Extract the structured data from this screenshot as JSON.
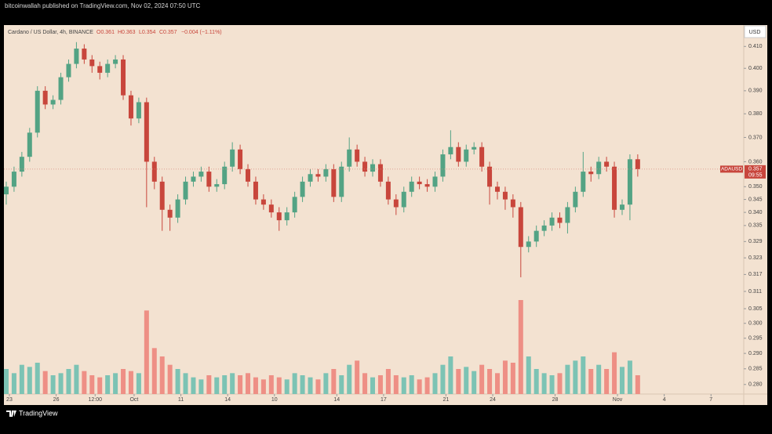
{
  "chart_data": {
    "type": "candlestick",
    "published": "bitcoinwallah published on TradingView.com, Nov 02, 2024 07:50 UTC",
    "title": "Cardano / US Dollar, 4h, BINANCE",
    "header_values": [
      "O0.361",
      "H0.363",
      "L0.354",
      "C0.357",
      "−0.004 (−1.11%)"
    ],
    "currency": "USD",
    "symbol_tag": "ADAUSD",
    "last_price_label": "0.357",
    "countdown": "09:55",
    "brand": "TradingView",
    "log_scale": true,
    "grid": false,
    "up_color": "#53a384",
    "down_color": "#c8463c",
    "volume_up_color": "#7cc3b4",
    "volume_down_color": "#ee8f85",
    "x": [
      -0.2,
      0.3,
      0.8,
      1.3,
      1.8,
      2.3,
      2.8,
      3.3,
      3.8,
      4.3,
      4.8,
      5.3,
      5.8,
      6.3,
      6.8,
      7.3,
      7.8,
      8.3,
      8.8,
      9.3,
      9.8,
      10.3,
      10.8,
      11.3,
      11.8,
      12.3,
      12.8,
      13.3,
      13.8,
      14.3,
      14.8,
      15.3,
      15.8,
      16.3,
      16.8,
      17.3,
      17.8,
      18.3,
      18.8,
      19.3,
      19.8,
      20.3,
      20.8,
      21.3,
      21.8,
      22.3,
      22.8,
      23.3,
      23.8,
      24.3,
      24.8,
      25.3,
      25.8,
      26.3,
      26.8,
      27.3,
      27.8,
      28.3,
      28.8,
      29.3,
      29.8,
      30.3,
      30.8,
      31.3,
      31.8,
      32.3,
      32.8,
      33.3,
      33.8,
      34.3,
      34.8,
      35.3,
      35.8,
      36.3,
      36.8,
      37.3,
      37.8,
      38.3,
      38.8,
      39.3,
      39.8,
      40.3
    ],
    "open": [
      0.347,
      0.35,
      0.356,
      0.362,
      0.372,
      0.39,
      0.384,
      0.386,
      0.396,
      0.402,
      0.409,
      0.404,
      0.401,
      0.398,
      0.402,
      0.404,
      0.388,
      0.378,
      0.385,
      0.36,
      0.352,
      0.341,
      0.338,
      0.345,
      0.352,
      0.354,
      0.356,
      0.35,
      0.351,
      0.358,
      0.365,
      0.357,
      0.352,
      0.345,
      0.343,
      0.34,
      0.337,
      0.34,
      0.346,
      0.352,
      0.355,
      0.354,
      0.357,
      0.346,
      0.358,
      0.365,
      0.36,
      0.356,
      0.359,
      0.352,
      0.345,
      0.342,
      0.348,
      0.352,
      0.351,
      0.35,
      0.354,
      0.363,
      0.366,
      0.36,
      0.365,
      0.366,
      0.358,
      0.35,
      0.348,
      0.345,
      0.342,
      0.327,
      0.329,
      0.333,
      0.335,
      0.338,
      0.336,
      0.342,
      0.348,
      0.356,
      0.355,
      0.36,
      0.358,
      0.341,
      0.343,
      0.361
    ],
    "high": [
      0.352,
      0.358,
      0.364,
      0.374,
      0.392,
      0.392,
      0.388,
      0.398,
      0.404,
      0.412,
      0.411,
      0.406,
      0.403,
      0.404,
      0.406,
      0.406,
      0.39,
      0.387,
      0.387,
      0.362,
      0.354,
      0.343,
      0.347,
      0.354,
      0.356,
      0.358,
      0.358,
      0.353,
      0.36,
      0.368,
      0.367,
      0.359,
      0.354,
      0.347,
      0.345,
      0.342,
      0.342,
      0.348,
      0.354,
      0.357,
      0.357,
      0.359,
      0.359,
      0.36,
      0.37,
      0.367,
      0.362,
      0.361,
      0.361,
      0.354,
      0.347,
      0.35,
      0.354,
      0.354,
      0.353,
      0.356,
      0.365,
      0.373,
      0.368,
      0.367,
      0.368,
      0.368,
      0.36,
      0.352,
      0.35,
      0.347,
      0.344,
      0.331,
      0.335,
      0.337,
      0.34,
      0.34,
      0.344,
      0.35,
      0.364,
      0.358,
      0.362,
      0.362,
      0.36,
      0.345,
      0.363,
      0.363
    ],
    "low": [
      0.343,
      0.348,
      0.354,
      0.36,
      0.37,
      0.382,
      0.382,
      0.384,
      0.394,
      0.4,
      0.402,
      0.398,
      0.395,
      0.396,
      0.4,
      0.386,
      0.375,
      0.376,
      0.342,
      0.349,
      0.333,
      0.333,
      0.336,
      0.343,
      0.35,
      0.352,
      0.348,
      0.348,
      0.349,
      0.356,
      0.355,
      0.35,
      0.343,
      0.341,
      0.338,
      0.333,
      0.335,
      0.338,
      0.344,
      0.35,
      0.352,
      0.352,
      0.344,
      0.344,
      0.356,
      0.358,
      0.354,
      0.354,
      0.35,
      0.343,
      0.339,
      0.34,
      0.346,
      0.349,
      0.348,
      0.348,
      0.352,
      0.361,
      0.358,
      0.358,
      0.363,
      0.356,
      0.343,
      0.345,
      0.341,
      0.338,
      0.316,
      0.325,
      0.327,
      0.331,
      0.333,
      0.334,
      0.332,
      0.34,
      0.346,
      0.352,
      0.353,
      0.356,
      0.338,
      0.339,
      0.337,
      0.354
    ],
    "close": [
      0.35,
      0.356,
      0.362,
      0.372,
      0.39,
      0.384,
      0.386,
      0.396,
      0.402,
      0.409,
      0.404,
      0.401,
      0.398,
      0.402,
      0.404,
      0.388,
      0.378,
      0.385,
      0.36,
      0.352,
      0.341,
      0.338,
      0.345,
      0.352,
      0.354,
      0.356,
      0.35,
      0.351,
      0.358,
      0.365,
      0.357,
      0.352,
      0.345,
      0.343,
      0.34,
      0.337,
      0.34,
      0.346,
      0.352,
      0.355,
      0.354,
      0.357,
      0.346,
      0.358,
      0.365,
      0.36,
      0.356,
      0.359,
      0.352,
      0.345,
      0.342,
      0.348,
      0.352,
      0.351,
      0.35,
      0.354,
      0.363,
      0.366,
      0.36,
      0.365,
      0.366,
      0.358,
      0.35,
      0.348,
      0.345,
      0.342,
      0.327,
      0.329,
      0.333,
      0.335,
      0.338,
      0.336,
      0.342,
      0.348,
      0.356,
      0.355,
      0.36,
      0.358,
      0.341,
      0.343,
      0.361,
      0.357
    ],
    "volume": [
      12,
      10,
      14,
      13,
      15,
      11,
      9,
      10,
      12,
      14,
      11,
      9,
      8,
      9,
      10,
      12,
      11,
      10,
      40,
      22,
      18,
      14,
      12,
      10,
      8,
      7,
      9,
      8,
      9,
      10,
      9,
      10,
      8,
      7,
      9,
      8,
      7,
      10,
      9,
      8,
      7,
      10,
      12,
      9,
      14,
      16,
      10,
      8,
      9,
      12,
      9,
      8,
      9,
      7,
      8,
      10,
      14,
      18,
      12,
      13,
      11,
      14,
      12,
      10,
      16,
      15,
      45,
      18,
      12,
      10,
      9,
      10,
      14,
      16,
      18,
      12,
      14,
      12,
      20,
      13,
      16,
      9
    ],
    "vlim": [
      0,
      45
    ],
    "xlim": [
      -0.35,
      47.1
    ],
    "xticks": [
      {
        "value": 0,
        "label": "23"
      },
      {
        "value": 3,
        "label": "26"
      },
      {
        "value": 5.5,
        "label": "12:00"
      },
      {
        "value": 8,
        "label": "Oct"
      },
      11,
      14,
      {
        "value": 17,
        "label": "10"
      },
      {
        "value": 21,
        "label": "14"
      },
      {
        "value": 24,
        "label": "17"
      },
      {
        "value": 28,
        "label": "21"
      },
      {
        "value": 31,
        "label": "24"
      },
      {
        "value": 35,
        "label": "28"
      },
      {
        "value": 39,
        "label": "Nov"
      },
      {
        "value": 42,
        "label": "4"
      },
      {
        "value": 45,
        "label": "7"
      }
    ],
    "ylim": [
      0.277,
      0.42
    ],
    "yticks": [
      {
        "value": 0.41,
        "label": "0.410"
      },
      {
        "value": 0.4,
        "label": "0.400"
      },
      {
        "value": 0.39,
        "label": "0.390"
      },
      {
        "value": 0.38,
        "label": "0.380"
      },
      {
        "value": 0.37,
        "label": "0.370"
      },
      {
        "value": 0.36,
        "label": "0.360"
      },
      {
        "value": 0.35,
        "label": "0.350"
      },
      0.345,
      {
        "value": 0.34,
        "label": "0.340"
      },
      0.335,
      0.329,
      0.323,
      0.317,
      0.311,
      0.305,
      {
        "value": 0.3,
        "label": "0.300"
      },
      0.295,
      {
        "value": 0.29,
        "label": "0.290"
      },
      0.285,
      {
        "value": 0.28,
        "label": "0.280"
      }
    ]
  }
}
